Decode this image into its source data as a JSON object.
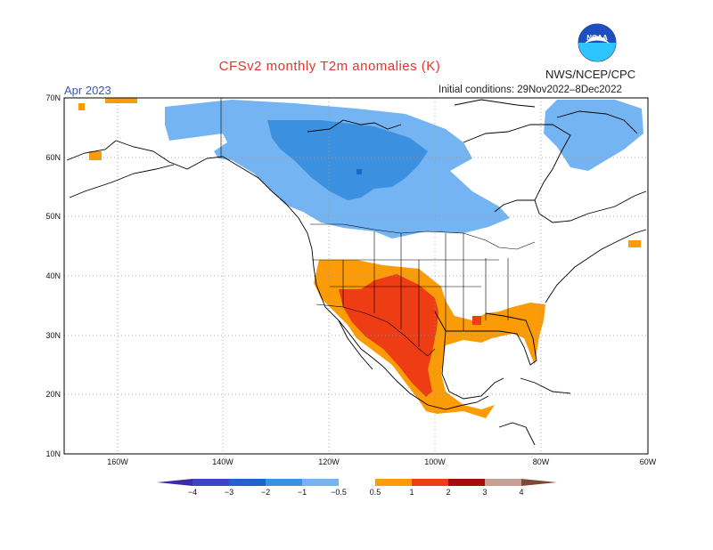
{
  "header": {
    "title": "CFSv2 monthly T2m anomalies (K)",
    "month": "Apr 2023",
    "agency": "NWS/NCEP/CPC",
    "initial_conditions": "Initial conditions: 29Nov2022–8Dec2022",
    "logo_text": "NOAA"
  },
  "map": {
    "latitude_labels": [
      "70N",
      "60N",
      "50N",
      "40N",
      "30N",
      "20N",
      "10N"
    ],
    "longitude_labels": [
      "160W",
      "140W",
      "120W",
      "100W",
      "80W",
      "60W"
    ],
    "colorbar_labels": [
      "−4",
      "−3",
      "−2",
      "−1",
      "−0.5",
      "0.5",
      "1",
      "2",
      "3",
      "4"
    ],
    "colors": {
      "lt_m4": "#3d2aa6",
      "m4_m3": "#3d44c8",
      "m3_m2": "#1f65c9",
      "m2_m1": "#3c90e0",
      "m1_m05": "#75b4f2",
      "p05_p1": "#fb9b06",
      "p1_p2": "#ee3c14",
      "p2_p3": "#a30e0a",
      "p3_p4": "#c6a094",
      "gt_p4": "#7a4a36"
    }
  }
}
